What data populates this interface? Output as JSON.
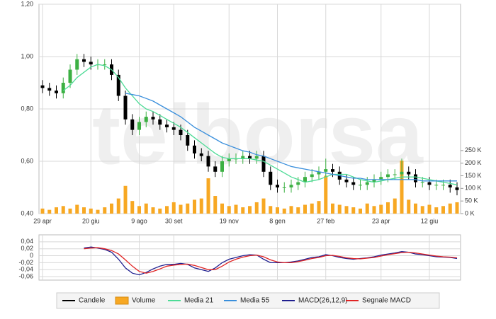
{
  "watermark": "telborsa",
  "chart_data": [
    {
      "type": "candlestick",
      "categories": [
        "29 apr",
        null,
        null,
        null,
        null,
        null,
        null,
        "20 giu",
        null,
        null,
        null,
        null,
        null,
        null,
        "9 ago",
        null,
        null,
        null,
        null,
        "30 set",
        null,
        null,
        null,
        null,
        null,
        null,
        null,
        "19 nov",
        null,
        null,
        null,
        null,
        null,
        null,
        "8 gen",
        null,
        null,
        null,
        null,
        null,
        null,
        "27 feb",
        null,
        null,
        null,
        null,
        null,
        null,
        null,
        "23 apr",
        null,
        null,
        null,
        null,
        null,
        null,
        "12 giu",
        null,
        null,
        null,
        null
      ],
      "candles": {
        "name": "Candele",
        "color": "#000000",
        "up_color": "#3cb043",
        "open": [
          0.89,
          0.88,
          0.87,
          0.86,
          0.9,
          0.95,
          0.99,
          0.98,
          0.97,
          0.97,
          0.97,
          0.93,
          0.85,
          0.76,
          0.72,
          0.75,
          0.77,
          0.76,
          0.74,
          0.73,
          0.72,
          0.7,
          0.66,
          0.63,
          0.62,
          0.58,
          0.56,
          0.6,
          0.61,
          0.61,
          0.62,
          0.61,
          0.62,
          0.56,
          0.51,
          0.5,
          0.5,
          0.51,
          0.52,
          0.54,
          0.55,
          0.56,
          0.57,
          0.56,
          0.53,
          0.52,
          0.51,
          0.51,
          0.52,
          0.53,
          0.54,
          0.55,
          0.55,
          0.56,
          0.55,
          0.52,
          0.52,
          0.51,
          0.51,
          0.51,
          0.5
        ],
        "high": [
          0.91,
          0.9,
          0.89,
          0.92,
          0.97,
          1.01,
          1.01,
          1.0,
          0.99,
          0.99,
          0.99,
          0.95,
          0.87,
          0.78,
          0.77,
          0.79,
          0.79,
          0.78,
          0.76,
          0.75,
          0.74,
          0.72,
          0.68,
          0.65,
          0.64,
          0.6,
          0.62,
          0.63,
          0.63,
          0.64,
          0.64,
          0.64,
          0.64,
          0.58,
          0.53,
          0.52,
          0.53,
          0.54,
          0.56,
          0.57,
          0.58,
          0.61,
          0.59,
          0.58,
          0.55,
          0.54,
          0.53,
          0.54,
          0.55,
          0.56,
          0.57,
          0.57,
          0.61,
          0.58,
          0.57,
          0.54,
          0.54,
          0.53,
          0.53,
          0.53,
          0.52
        ],
        "low": [
          0.86,
          0.85,
          0.84,
          0.84,
          0.88,
          0.93,
          0.96,
          0.95,
          0.95,
          0.95,
          0.91,
          0.83,
          0.74,
          0.7,
          0.7,
          0.73,
          0.74,
          0.72,
          0.71,
          0.7,
          0.68,
          0.64,
          0.61,
          0.6,
          0.56,
          0.54,
          0.54,
          0.58,
          0.59,
          0.59,
          0.59,
          0.59,
          0.54,
          0.49,
          0.48,
          0.48,
          0.48,
          0.49,
          0.5,
          0.52,
          0.53,
          0.54,
          0.54,
          0.51,
          0.5,
          0.49,
          0.49,
          0.49,
          0.5,
          0.51,
          0.52,
          0.53,
          0.53,
          0.53,
          0.5,
          0.5,
          0.49,
          0.49,
          0.49,
          0.48,
          0.47
        ],
        "close": [
          0.88,
          0.87,
          0.86,
          0.9,
          0.95,
          0.99,
          0.98,
          0.97,
          0.97,
          0.97,
          0.93,
          0.85,
          0.76,
          0.72,
          0.75,
          0.77,
          0.76,
          0.74,
          0.73,
          0.72,
          0.7,
          0.66,
          0.63,
          0.62,
          0.58,
          0.56,
          0.6,
          0.61,
          0.61,
          0.62,
          0.61,
          0.62,
          0.56,
          0.51,
          0.5,
          0.5,
          0.51,
          0.52,
          0.54,
          0.55,
          0.56,
          0.57,
          0.56,
          0.53,
          0.52,
          0.51,
          0.51,
          0.52,
          0.53,
          0.54,
          0.55,
          0.55,
          0.56,
          0.55,
          0.52,
          0.52,
          0.51,
          0.51,
          0.51,
          0.5,
          0.49
        ]
      },
      "series": [
        {
          "name": "Volume",
          "type": "bar",
          "axis": "y2",
          "color": "#f7a823",
          "values": [
            20000,
            15000,
            25000,
            30000,
            20000,
            35000,
            25000,
            20000,
            15000,
            25000,
            40000,
            60000,
            110000,
            50000,
            30000,
            40000,
            25000,
            20000,
            30000,
            45000,
            35000,
            40000,
            55000,
            60000,
            140000,
            70000,
            40000,
            30000,
            35000,
            25000,
            30000,
            45000,
            60000,
            30000,
            25000,
            20000,
            30000,
            25000,
            35000,
            40000,
            50000,
            150000,
            40000,
            35000,
            30000,
            25000,
            20000,
            40000,
            30000,
            35000,
            45000,
            60000,
            210000,
            55000,
            40000,
            30000,
            35000,
            25000,
            30000,
            40000,
            45000
          ]
        },
        {
          "name": "Media 21",
          "type": "line",
          "color": "#4ddb96",
          "values": [
            null,
            null,
            null,
            0.87,
            0.89,
            0.92,
            0.94,
            0.96,
            0.97,
            0.965,
            0.95,
            0.92,
            0.88,
            0.85,
            0.82,
            0.8,
            0.79,
            0.775,
            0.76,
            0.745,
            0.73,
            0.71,
            0.69,
            0.67,
            0.65,
            0.63,
            0.615,
            0.61,
            0.61,
            0.61,
            0.61,
            0.605,
            0.6,
            0.585,
            0.57,
            0.555,
            0.54,
            0.53,
            0.52,
            0.525,
            0.53,
            0.54,
            0.55,
            0.55,
            0.55,
            0.54,
            0.53,
            0.525,
            0.52,
            0.525,
            0.53,
            0.535,
            0.54,
            0.54,
            0.54,
            0.535,
            0.53,
            0.525,
            0.52,
            0.515,
            0.51
          ]
        },
        {
          "name": "Media 55",
          "type": "line",
          "color": "#3a8fdc",
          "values": [
            null,
            null,
            null,
            null,
            null,
            null,
            null,
            null,
            null,
            null,
            null,
            null,
            0.86,
            0.855,
            0.85,
            0.84,
            0.83,
            0.815,
            0.8,
            0.785,
            0.77,
            0.75,
            0.73,
            0.715,
            0.7,
            0.685,
            0.67,
            0.66,
            0.65,
            0.64,
            0.635,
            0.625,
            0.62,
            0.61,
            0.6,
            0.59,
            0.58,
            0.575,
            0.57,
            0.565,
            0.56,
            0.555,
            0.55,
            0.545,
            0.54,
            0.535,
            0.535,
            0.53,
            0.53,
            0.53,
            0.53,
            0.53,
            0.53,
            0.53,
            0.53,
            0.525,
            0.525,
            0.525,
            0.525,
            0.525,
            0.525
          ]
        }
      ],
      "ylim": [
        0.4,
        1.2
      ],
      "yticks": [
        {
          "value": 0.4,
          "label": "0,40"
        },
        {
          "value": 0.6,
          "label": "0,60"
        },
        {
          "value": 0.8,
          "label": "0,80"
        },
        {
          "value": 1.0,
          "label": "1,00"
        },
        {
          "value": 1.2,
          "label": "1,20"
        }
      ],
      "y2lim": [
        0,
        830000
      ],
      "y2ticks": [
        {
          "value": 0,
          "label": "0 K"
        },
        {
          "value": 50000,
          "label": "50 K"
        },
        {
          "value": 100000,
          "label": "100 K"
        },
        {
          "value": 150000,
          "label": "150 K"
        },
        {
          "value": 200000,
          "label": "200 K"
        },
        {
          "value": 250000,
          "label": "250 K"
        }
      ],
      "grid": true
    },
    {
      "type": "line",
      "series": [
        {
          "name": "MACD(26,12,9)",
          "color": "#1f1f8f",
          "values": [
            null,
            null,
            null,
            null,
            null,
            null,
            0.022,
            0.025,
            0.022,
            0.018,
            0.01,
            -0.01,
            -0.035,
            -0.05,
            -0.055,
            -0.048,
            -0.038,
            -0.03,
            -0.025,
            -0.025,
            -0.022,
            -0.025,
            -0.035,
            -0.04,
            -0.045,
            -0.035,
            -0.02,
            -0.01,
            -0.005,
            0,
            0.003,
            0.002,
            -0.01,
            -0.02,
            -0.02,
            -0.02,
            -0.018,
            -0.015,
            -0.01,
            -0.005,
            -0.003,
            0.003,
            0,
            -0.005,
            -0.008,
            -0.01,
            -0.008,
            -0.006,
            -0.003,
            0.002,
            0.005,
            0.008,
            0.012,
            0.01,
            0.005,
            0.003,
            0,
            -0.003,
            -0.004,
            -0.005,
            -0.008
          ]
        },
        {
          "name": "Segnale MACD",
          "color": "#e02424",
          "values": [
            null,
            null,
            null,
            null,
            null,
            null,
            0.02,
            0.022,
            0.023,
            0.02,
            0.015,
            0.005,
            -0.012,
            -0.03,
            -0.045,
            -0.05,
            -0.045,
            -0.038,
            -0.03,
            -0.027,
            -0.025,
            -0.024,
            -0.028,
            -0.034,
            -0.04,
            -0.04,
            -0.03,
            -0.018,
            -0.01,
            -0.004,
            0,
            0.002,
            -0.003,
            -0.012,
            -0.018,
            -0.02,
            -0.02,
            -0.017,
            -0.013,
            -0.008,
            -0.005,
            0,
            0.001,
            -0.002,
            -0.006,
            -0.008,
            -0.009,
            -0.007,
            -0.005,
            -0.001,
            0.003,
            0.006,
            0.009,
            0.01,
            0.008,
            0.005,
            0.002,
            -0.001,
            -0.003,
            -0.004,
            -0.006
          ]
        }
      ],
      "ylim": [
        -0.07,
        0.06
      ],
      "yticks": [
        {
          "value": 0.04,
          "label": "0,04"
        },
        {
          "value": 0.02,
          "label": "0,02"
        },
        0,
        {
          "value": -0.02,
          "label": "-0,02"
        },
        {
          "value": -0.04,
          "label": "-0,04"
        },
        {
          "value": -0.06,
          "label": "-0,06"
        }
      ],
      "grid": true
    }
  ]
}
